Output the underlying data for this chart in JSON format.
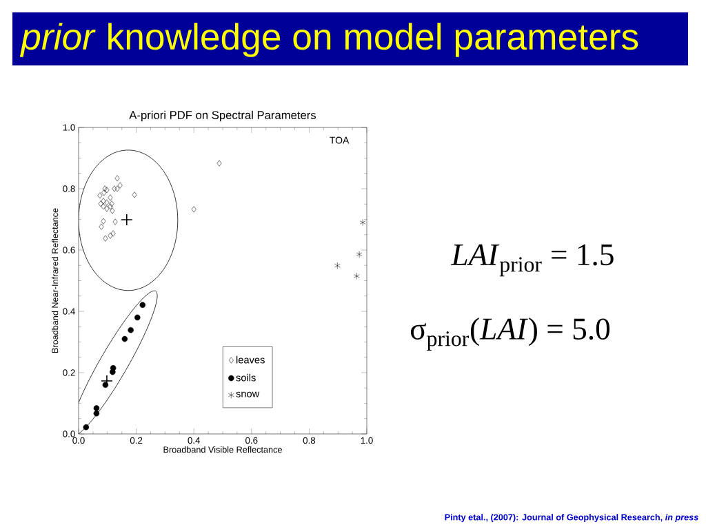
{
  "chart_data": {
    "type": "scatter",
    "title": "*prior* knowledge on model parameters",
    "subtitle": "A-priori PDF on Spectral Parameters",
    "xlabel": "Broadband Visible Reflectance",
    "ylabel": "Broadband Near-Infrared Reflectance",
    "xlim": [
      0,
      1
    ],
    "ylim": [
      0,
      1
    ],
    "xticks": [
      {
        "value": 0,
        "label": "0.0"
      },
      {
        "value": 0.2,
        "label": "0.2"
      },
      {
        "value": 0.4,
        "label": "0.4"
      },
      {
        "value": 0.6,
        "label": "0.6"
      },
      {
        "value": 0.8,
        "label": "0.8"
      },
      {
        "value": 1,
        "label": "1.0"
      }
    ],
    "yticks": [
      {
        "value": 0,
        "label": "0.0"
      },
      {
        "value": 0.2,
        "label": "0.2"
      },
      {
        "value": 0.4,
        "label": "0.4"
      },
      {
        "value": 0.6,
        "label": "0.6"
      },
      {
        "value": 0.8,
        "label": "0.8"
      },
      {
        "value": 1,
        "label": "1.0"
      }
    ],
    "legend": "bottom",
    "series": [
      {
        "name": "leaves",
        "color": "#000000",
        "marker": "diamond",
        "x": [
          0.134,
          0.144,
          0.134,
          0.124,
          0.091,
          0.098,
          0.074,
          0.088,
          0.11,
          0.086,
          0.077,
          0.098,
          0.115,
          0.086,
          0.098,
          0.11,
          0.117,
          0.194,
          0.086,
          0.079,
          0.127,
          0.12,
          0.11,
          0.093,
          0.4,
          0.488
        ],
        "values": [
          0.834,
          0.811,
          0.8,
          0.8,
          0.8,
          0.796,
          0.778,
          0.787,
          0.771,
          0.76,
          0.751,
          0.755,
          0.751,
          0.742,
          0.735,
          0.742,
          0.728,
          0.78,
          0.694,
          0.676,
          0.692,
          0.654,
          0.647,
          0.638,
          0.733,
          0.883
        ]
      },
      {
        "name": "soils",
        "color": "#000000",
        "marker": "circle",
        "x": [
          0.222,
          0.204,
          0.181,
          0.16,
          0.12,
          0.118,
          0.093,
          0.062,
          0.062,
          0.026
        ],
        "values": [
          0.421,
          0.38,
          0.339,
          0.31,
          0.215,
          0.202,
          0.16,
          0.084,
          0.067,
          0.022
        ]
      },
      {
        "name": "snow",
        "color": "#000000",
        "marker": "cross",
        "x": [
          0.986,
          0.974,
          0.898,
          0.965
        ],
        "values": [
          0.69,
          0.586,
          0.549,
          0.515
        ]
      },
      {
        "color": "#000000",
        "x": [
          0.167,
          0.098
        ],
        "values": [
          0.699,
          0.173
        ]
      }
    ],
    "annotations": [
      "TOA",
      "*LAI*$_{prior}$ = 1.5",
      "σ$_{prior}$(*LAI*) = 5.0",
      "Pinty etal., (2007): Journal of Geophysical Research, *in press*"
    ]
  }
}
